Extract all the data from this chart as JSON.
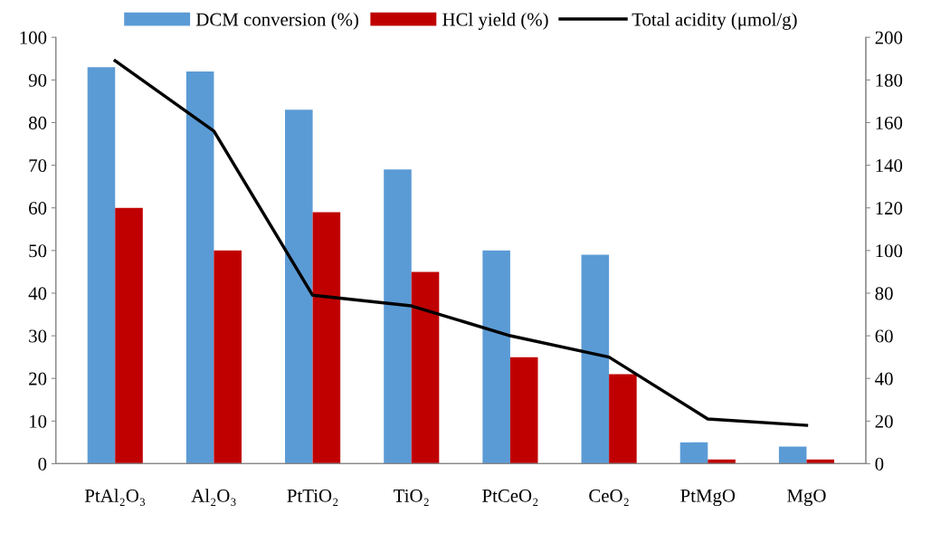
{
  "chart_data": {
    "type": "bar",
    "categories": [
      "PtAl₂O₃",
      "Al₂O₃",
      "PtTiO₂",
      "TiO₂",
      "PtCeO₂",
      "CeO₂",
      "PtMgO",
      "MgO"
    ],
    "series": [
      {
        "name": "DCM conversion (%)",
        "color": "#5b9bd5",
        "values": [
          93,
          92,
          83,
          69,
          50,
          49,
          5,
          4
        ]
      },
      {
        "name": "HCl yield (%)",
        "color": "#c00000",
        "values": [
          60,
          50,
          59,
          45,
          25,
          21,
          1,
          1
        ]
      },
      {
        "name": "Total acidity (μmol/g)",
        "type": "line",
        "axis": "y2",
        "color": "#000000",
        "values": [
          189,
          156,
          79,
          74,
          60,
          50,
          21,
          18
        ]
      }
    ],
    "ylim": [
      0,
      100
    ],
    "yticks": [
      0,
      10,
      20,
      30,
      40,
      50,
      60,
      70,
      80,
      90,
      100
    ],
    "y2lim": [
      0,
      200
    ],
    "y2ticks": [
      0,
      20,
      40,
      60,
      80,
      100,
      120,
      140,
      160,
      180,
      200
    ],
    "legend": "top",
    "grid": false,
    "marker": "none",
    "line_style": "solid"
  }
}
